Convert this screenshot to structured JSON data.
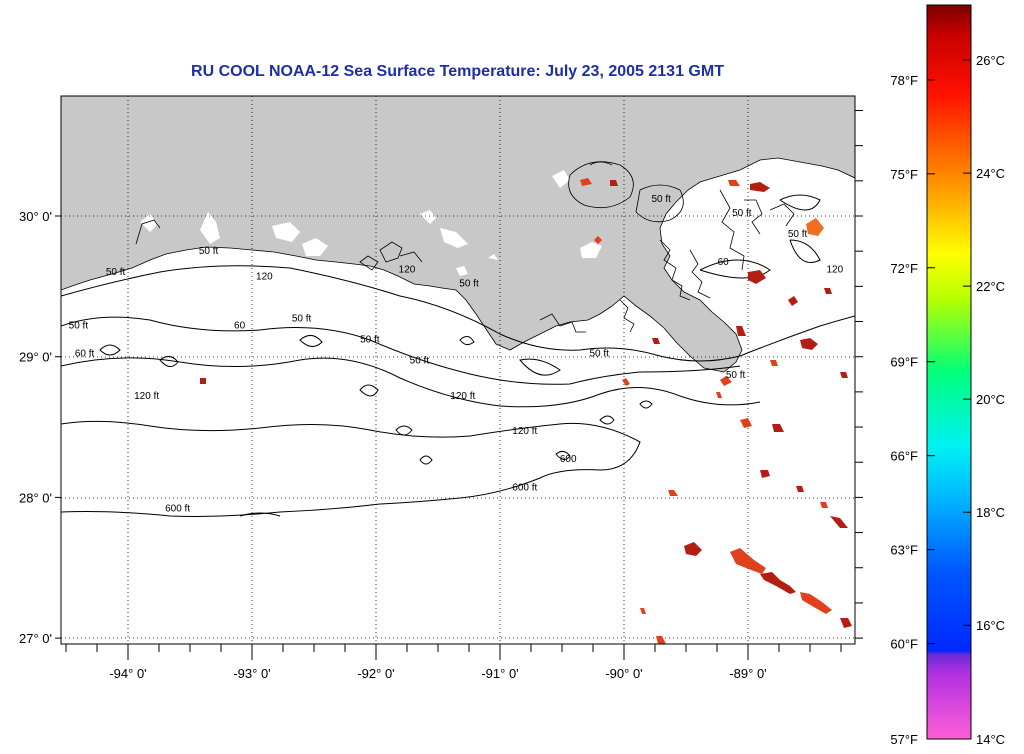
{
  "title": "RU COOL  NOAA-12  Sea Surface Temperature:  July 23, 2005 2131 GMT",
  "colors": {
    "land": "#c8c8c8",
    "title": "#1c2fa6",
    "contour": "#000000",
    "sst_hot": "#b41e12",
    "sst_warm": "#e0401c",
    "sst_orange": "#f07020"
  },
  "map": {
    "lon_range": [
      -94.6,
      -88.2
    ],
    "lat_range": [
      26.9,
      30.85
    ],
    "lat_ticks": [
      {
        "value": 30,
        "label": "30° 0'"
      },
      {
        "value": 29,
        "label": "29° 0'"
      },
      {
        "value": 28,
        "label": "28° 0'"
      },
      {
        "value": 27,
        "label": "27° 0'"
      }
    ],
    "lon_ticks": [
      {
        "value": -94,
        "label": "-94° 0'"
      },
      {
        "value": -93,
        "label": "-93° 0'"
      },
      {
        "value": -92,
        "label": "-92° 0'"
      },
      {
        "value": -91,
        "label": "-91° 0'"
      },
      {
        "value": -90,
        "label": "-90° 0'"
      },
      {
        "value": -89,
        "label": "-89° 0'"
      }
    ],
    "contour_labels": [
      {
        "text": "50 ft",
        "lon": -94.1,
        "lat": 29.58
      },
      {
        "text": "50 ft",
        "lon": -93.35,
        "lat": 29.73
      },
      {
        "text": "120",
        "lon": -92.9,
        "lat": 29.55
      },
      {
        "text": "50 ft",
        "lon": -92.6,
        "lat": 29.25
      },
      {
        "text": "50 ft",
        "lon": -92.05,
        "lat": 29.1
      },
      {
        "text": "50 ft",
        "lon": -94.4,
        "lat": 29.2
      },
      {
        "text": "60 ft",
        "lon": -94.35,
        "lat": 29.0
      },
      {
        "text": "60",
        "lon": -93.1,
        "lat": 29.2
      },
      {
        "text": "120 ft",
        "lon": -93.85,
        "lat": 28.7
      },
      {
        "text": "50 ft",
        "lon": -91.25,
        "lat": 29.5
      },
      {
        "text": "120",
        "lon": -91.75,
        "lat": 29.6
      },
      {
        "text": "50 ft",
        "lon": -91.65,
        "lat": 28.95
      },
      {
        "text": "120 ft",
        "lon": -91.3,
        "lat": 28.7
      },
      {
        "text": "120 ft",
        "lon": -90.8,
        "lat": 28.45
      },
      {
        "text": "600",
        "lon": -90.45,
        "lat": 28.25
      },
      {
        "text": "600 ft",
        "lon": -90.8,
        "lat": 28.05
      },
      {
        "text": "600 ft",
        "lon": -93.6,
        "lat": 27.9
      },
      {
        "text": "50 ft",
        "lon": -90.2,
        "lat": 29.0
      },
      {
        "text": "50 ft",
        "lon": -89.7,
        "lat": 30.1
      },
      {
        "text": "50 ft",
        "lon": -89.05,
        "lat": 30.0
      },
      {
        "text": "50 ft",
        "lon": -88.6,
        "lat": 29.85
      },
      {
        "text": "120",
        "lon": -88.3,
        "lat": 29.6
      },
      {
        "text": "60",
        "lon": -89.2,
        "lat": 29.65
      },
      {
        "text": "50 ft",
        "lon": -89.1,
        "lat": 28.85
      }
    ]
  },
  "colorbar": {
    "fahrenheit_labels": [
      {
        "label": "78°F",
        "pos": 0.898
      },
      {
        "label": "75°F",
        "pos": 0.77
      },
      {
        "label": "72°F",
        "pos": 0.642
      },
      {
        "label": "69°F",
        "pos": 0.514
      },
      {
        "label": "66°F",
        "pos": 0.386
      },
      {
        "label": "63°F",
        "pos": 0.258
      },
      {
        "label": "60°F",
        "pos": 0.13
      },
      {
        "label": "57°F",
        "pos": 0.0
      }
    ],
    "celsius_labels": [
      {
        "label": "26°C",
        "pos": 0.925
      },
      {
        "label": "24°C",
        "pos": 0.771
      },
      {
        "label": "22°C",
        "pos": 0.617
      },
      {
        "label": "20°C",
        "pos": 0.463
      },
      {
        "label": "18°C",
        "pos": 0.309
      },
      {
        "label": "16°C",
        "pos": 0.155
      },
      {
        "label": "14°C",
        "pos": 0.0
      }
    ],
    "gradient": [
      {
        "pos": 0.0,
        "color": "#ff5fd8"
      },
      {
        "pos": 0.09,
        "color": "#b030e0"
      },
      {
        "pos": 0.115,
        "color": "#6a2bd6"
      },
      {
        "pos": 0.12,
        "color": "#0028ff"
      },
      {
        "pos": 0.23,
        "color": "#0058ff"
      },
      {
        "pos": 0.33,
        "color": "#00b8ff"
      },
      {
        "pos": 0.4,
        "color": "#00f2f2"
      },
      {
        "pos": 0.5,
        "color": "#00ff7a"
      },
      {
        "pos": 0.6,
        "color": "#b8ff00"
      },
      {
        "pos": 0.66,
        "color": "#ffff00"
      },
      {
        "pos": 0.76,
        "color": "#ff9000"
      },
      {
        "pos": 0.88,
        "color": "#ff1000"
      },
      {
        "pos": 0.96,
        "color": "#c80000"
      },
      {
        "pos": 1.0,
        "color": "#7a0000"
      }
    ]
  }
}
